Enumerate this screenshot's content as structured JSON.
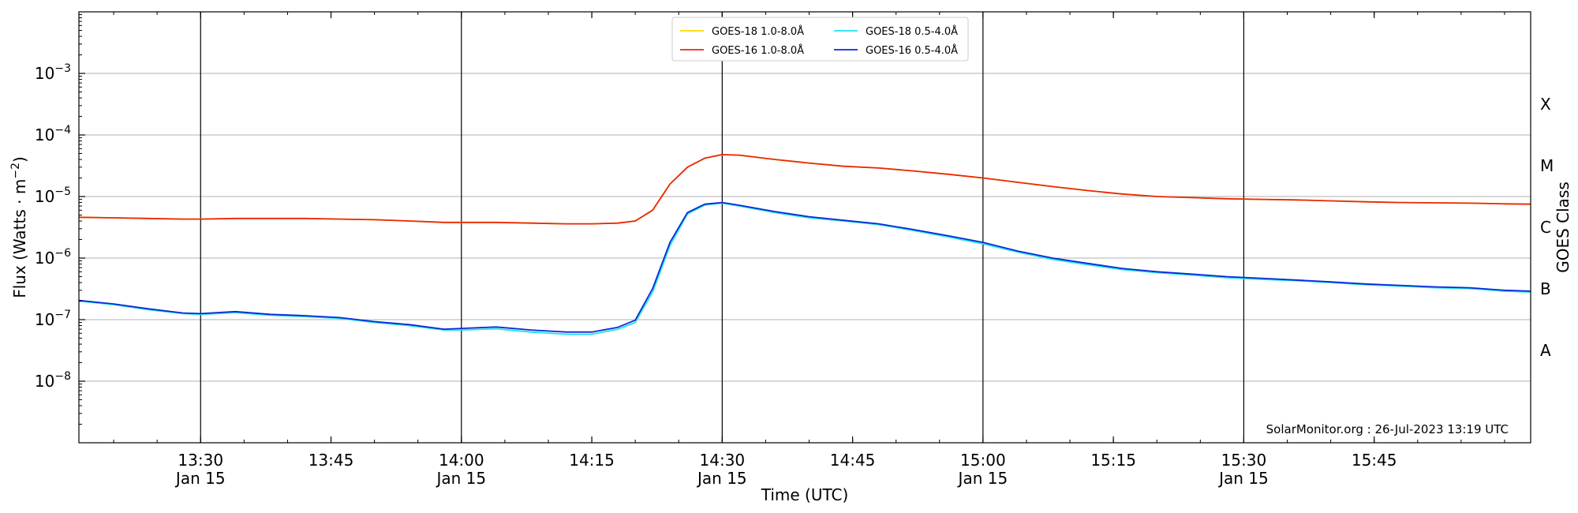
{
  "chart_data": {
    "type": "line",
    "title": "",
    "xlabel": "Time (UTC)",
    "ylabel": "Flux (Watts · m",
    "ylabel_sup": "−2",
    "ylabel_end": ")",
    "right_label": "GOES Class",
    "y_scale": "log",
    "ylim": [
      1e-09,
      0.01
    ],
    "xlim": [
      "13:16",
      "16:03"
    ],
    "grid": "horizontal",
    "legend_position": "top-center",
    "credit": "SolarMonitor.org : 26-Jul-2023 13:19 UTC",
    "y_ticks": [
      {
        "exp": -8,
        "base": "10",
        "sup": "−8"
      },
      {
        "exp": -7,
        "base": "10",
        "sup": "−7"
      },
      {
        "exp": -6,
        "base": "10",
        "sup": "−6"
      },
      {
        "exp": -5,
        "base": "10",
        "sup": "−5"
      },
      {
        "exp": -4,
        "base": "10",
        "sup": "−4"
      },
      {
        "exp": -3,
        "base": "10",
        "sup": "−3"
      }
    ],
    "x_ticks": [
      {
        "time": "13:30",
        "label": "13:30",
        "date": "Jan 15"
      },
      {
        "time": "13:45",
        "label": "13:45",
        "date": ""
      },
      {
        "time": "14:00",
        "label": "14:00",
        "date": "Jan 15"
      },
      {
        "time": "14:15",
        "label": "14:15",
        "date": ""
      },
      {
        "time": "14:30",
        "label": "14:30",
        "date": "Jan 15"
      },
      {
        "time": "14:45",
        "label": "14:45",
        "date": ""
      },
      {
        "time": "15:00",
        "label": "15:00",
        "date": "Jan 15"
      },
      {
        "time": "15:15",
        "label": "15:15",
        "date": ""
      },
      {
        "time": "15:30",
        "label": "15:30",
        "date": "Jan 15"
      },
      {
        "time": "15:45",
        "label": "15:45",
        "date": ""
      }
    ],
    "vlines": [
      "13:30",
      "14:00",
      "14:30",
      "15:00",
      "15:30"
    ],
    "classes": [
      {
        "label": "A",
        "exp": -7.5
      },
      {
        "label": "B",
        "exp": -6.5
      },
      {
        "label": "C",
        "exp": -5.5
      },
      {
        "label": "M",
        "exp": -4.5
      },
      {
        "label": "X",
        "exp": -3.5
      }
    ],
    "x": [
      "13:16",
      "13:20",
      "13:24",
      "13:28",
      "13:30",
      "13:34",
      "13:38",
      "13:42",
      "13:46",
      "13:50",
      "13:54",
      "13:58",
      "14:00",
      "14:04",
      "14:08",
      "14:12",
      "14:15",
      "14:18",
      "14:20",
      "14:22",
      "14:24",
      "14:26",
      "14:28",
      "14:30",
      "14:32",
      "14:36",
      "14:40",
      "14:44",
      "14:48",
      "14:52",
      "14:56",
      "15:00",
      "15:04",
      "15:08",
      "15:12",
      "15:16",
      "15:20",
      "15:24",
      "15:28",
      "15:32",
      "15:36",
      "15:40",
      "15:44",
      "15:48",
      "15:52",
      "15:56",
      "16:00",
      "16:03"
    ],
    "series": [
      {
        "name": "GOES-18 1.0-8.0Å",
        "color": "#ffd700",
        "values": [
          4.6e-06,
          4.5e-06,
          4.4e-06,
          4.3e-06,
          4.3e-06,
          4.4e-06,
          4.4e-06,
          4.4e-06,
          4.3e-06,
          4.2e-06,
          4e-06,
          3.8e-06,
          3.8e-06,
          3.8e-06,
          3.7e-06,
          3.6e-06,
          3.6e-06,
          3.7e-06,
          4e-06,
          6e-06,
          1.6e-05,
          3e-05,
          4.2e-05,
          4.8e-05,
          4.7e-05,
          4e-05,
          3.5e-05,
          3.1e-05,
          2.9e-05,
          2.6e-05,
          2.3e-05,
          2e-05,
          1.7e-05,
          1.45e-05,
          1.25e-05,
          1.1e-05,
          1e-05,
          9.6e-06,
          9.2e-06,
          9e-06,
          8.8e-06,
          8.5e-06,
          8.2e-06,
          8e-06,
          7.9e-06,
          7.8e-06,
          7.6e-06,
          7.5e-06
        ]
      },
      {
        "name": "GOES-16 1.0-8.0Å",
        "color": "#e8290b",
        "values": [
          4.6e-06,
          4.5e-06,
          4.4e-06,
          4.3e-06,
          4.3e-06,
          4.4e-06,
          4.4e-06,
          4.4e-06,
          4.3e-06,
          4.2e-06,
          4e-06,
          3.8e-06,
          3.8e-06,
          3.8e-06,
          3.7e-06,
          3.6e-06,
          3.6e-06,
          3.7e-06,
          4e-06,
          6e-06,
          1.6e-05,
          3e-05,
          4.2e-05,
          4.8e-05,
          4.7e-05,
          4e-05,
          3.5e-05,
          3.1e-05,
          2.9e-05,
          2.6e-05,
          2.3e-05,
          2e-05,
          1.7e-05,
          1.45e-05,
          1.25e-05,
          1.1e-05,
          1e-05,
          9.6e-06,
          9.2e-06,
          9e-06,
          8.8e-06,
          8.5e-06,
          8.2e-06,
          8e-06,
          7.9e-06,
          7.8e-06,
          7.6e-06,
          7.5e-06
        ]
      },
      {
        "name": "GOES-18 0.5-4.0Å",
        "color": "#22e0f0",
        "values": [
          2e-07,
          1.75e-07,
          1.45e-07,
          1.25e-07,
          1.22e-07,
          1.3e-07,
          1.18e-07,
          1.12e-07,
          1.05e-07,
          9e-08,
          8e-08,
          6.8e-08,
          6.8e-08,
          7.1e-08,
          6.3e-08,
          5.8e-08,
          5.8e-08,
          7e-08,
          9e-08,
          2.8e-07,
          1.6e-06,
          5.2e-06,
          7.3e-06,
          7.8e-06,
          7e-06,
          5.5e-06,
          4.5e-06,
          4e-06,
          3.5e-06,
          2.8e-06,
          2.2e-06,
          1.7e-06,
          1.25e-06,
          9.5e-07,
          7.8e-07,
          6.5e-07,
          5.8e-07,
          5.3e-07,
          4.8e-07,
          4.5e-07,
          4.3e-07,
          4e-07,
          3.7e-07,
          3.5e-07,
          3.3e-07,
          3.2e-07,
          2.9e-07,
          2.8e-07
        ]
      },
      {
        "name": "GOES-16 0.5-4.0Å",
        "color": "#0a2ad6",
        "values": [
          2.05e-07,
          1.8e-07,
          1.5e-07,
          1.28e-07,
          1.25e-07,
          1.35e-07,
          1.22e-07,
          1.16e-07,
          1.08e-07,
          9.3e-08,
          8.3e-08,
          7e-08,
          7.2e-08,
          7.6e-08,
          6.8e-08,
          6.3e-08,
          6.3e-08,
          7.5e-08,
          9.8e-08,
          3.2e-07,
          1.8e-06,
          5.5e-06,
          7.5e-06,
          8e-06,
          7.2e-06,
          5.7e-06,
          4.7e-06,
          4.1e-06,
          3.6e-06,
          2.9e-06,
          2.3e-06,
          1.8e-06,
          1.3e-06,
          1e-06,
          8.2e-07,
          6.8e-07,
          6e-07,
          5.5e-07,
          5e-07,
          4.7e-07,
          4.4e-07,
          4.1e-07,
          3.8e-07,
          3.6e-07,
          3.4e-07,
          3.3e-07,
          3e-07,
          2.9e-07
        ]
      }
    ]
  }
}
